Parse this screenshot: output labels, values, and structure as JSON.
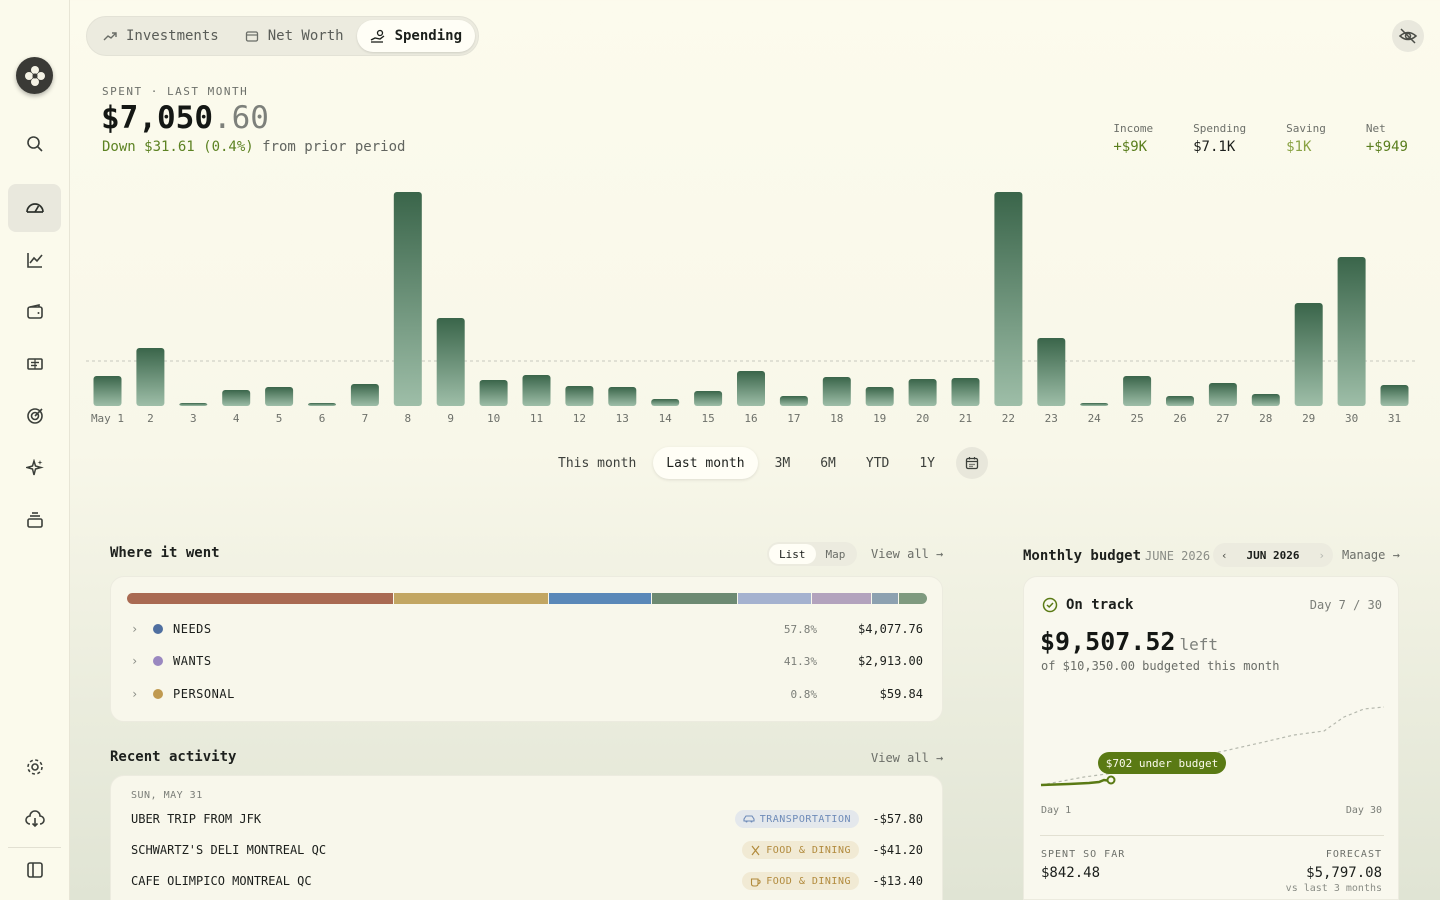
{
  "nav": {
    "tabs": [
      {
        "label": "Investments",
        "icon": "trending-up-icon"
      },
      {
        "label": "Net Worth",
        "icon": "wallet-icon"
      },
      {
        "label": "Spending",
        "icon": "hand-coins-icon"
      }
    ],
    "active_tab": "Spending"
  },
  "header": {
    "kicker": "SPENT · LAST MONTH",
    "amount_main": "$7,050",
    "amount_cents": ".60",
    "delta_change": "Down $31.61 (0.4%)",
    "delta_suffix": " from prior period"
  },
  "stats": [
    {
      "label": "Income",
      "value": "+$9K"
    },
    {
      "label": "Spending",
      "value": "$7.1K"
    },
    {
      "label": "Saving",
      "value": "$1K"
    },
    {
      "label": "Net",
      "value": "+$949"
    }
  ],
  "ranges": {
    "options": [
      "This month",
      "Last month",
      "3M",
      "6M",
      "YTD",
      "1Y"
    ],
    "active": "Last month"
  },
  "chart_data": {
    "type": "bar",
    "categories": [
      "May 1",
      "2",
      "3",
      "4",
      "5",
      "6",
      "7",
      "8",
      "9",
      "10",
      "11",
      "12",
      "13",
      "14",
      "15",
      "16",
      "17",
      "18",
      "19",
      "20",
      "21",
      "22",
      "23",
      "24",
      "25",
      "26",
      "27",
      "28",
      "29",
      "30",
      "31"
    ],
    "values": [
      30,
      58,
      3,
      16,
      19,
      3,
      22,
      214,
      88,
      26,
      31,
      20,
      19,
      7,
      15,
      35,
      10,
      29,
      19,
      27,
      28,
      214,
      68,
      3,
      30,
      10,
      23,
      12,
      103,
      149,
      21
    ],
    "reference_line": 45,
    "colors": {
      "bar_top": "#3a654a",
      "bar_bottom": "#9ebea8"
    }
  },
  "where": {
    "title": "Where it went",
    "toggle": [
      "List",
      "Map"
    ],
    "toggle_active": "List",
    "view_all": "View all →",
    "segments": [
      {
        "share": 33.5,
        "color": "#a96a52"
      },
      {
        "share": 19.5,
        "color": "#c2a662"
      },
      {
        "share": 12.8,
        "color": "#5a88b8"
      },
      {
        "share": 10.8,
        "color": "#6d8a72"
      },
      {
        "share": 9.2,
        "color": "#a5b2cf"
      },
      {
        "share": 7.4,
        "color": "#b3a3bd"
      },
      {
        "share": 3.3,
        "color": "#8da1b0"
      },
      {
        "share": 3.5,
        "color": "#7f9a7f"
      }
    ],
    "categories": [
      {
        "name": "NEEDS",
        "pct": "57.8%",
        "amount": "$4,077.76",
        "color": "#4f6fa0"
      },
      {
        "name": "WANTS",
        "pct": "41.3%",
        "amount": "$2,913.00",
        "color": "#9a88c0"
      },
      {
        "name": "PERSONAL",
        "pct": "0.8%",
        "amount": "$59.84",
        "color": "#c09a50"
      }
    ]
  },
  "activity": {
    "title": "Recent activity",
    "view_all": "View all →",
    "date": "SUN, MAY 31",
    "transactions": [
      {
        "desc": "UBER TRIP FROM JFK",
        "category": "TRANSPORTATION",
        "amount": "-$57.80",
        "icon": "car-icon"
      },
      {
        "desc": "SCHWARTZ'S DELI MONTREAL QC",
        "category": "FOOD & DINING",
        "amount": "-$41.20",
        "icon": "utensils-icon"
      },
      {
        "desc": "CAFE OLIMPICO MONTREAL QC",
        "category": "FOOD & DINING",
        "amount": "-$13.40",
        "icon": "coffee-icon"
      }
    ]
  },
  "budget": {
    "title": "Monthly budget",
    "month_sub": "JUNE 2026",
    "month_nav": "JUN 2026",
    "manage": "Manage →",
    "status": "On track",
    "day": "Day 7 / 30",
    "left_amount": "$9,507.52",
    "left_word": "left",
    "of_line": "of $10,350.00 budgeted this month",
    "tooltip": "$702 under budget",
    "axis_start": "Day 1",
    "axis_end": "Day 30",
    "spent_label": "SPENT SO FAR",
    "spent_value": "$842.48",
    "forecast_label": "FORECAST",
    "forecast_value": "$5,797.08",
    "forecast_sub": "vs last 3 months",
    "colors": {
      "accent": "#5a7a14"
    }
  }
}
